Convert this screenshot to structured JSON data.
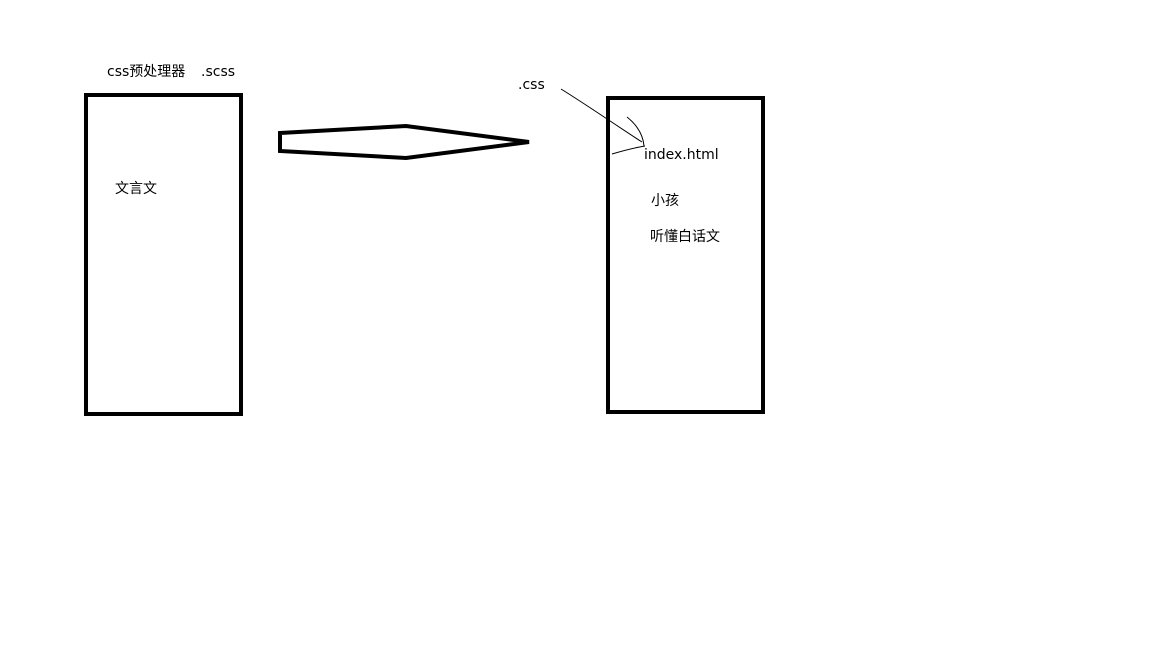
{
  "left": {
    "caption": "css预处理器",
    "extension": ".scss",
    "inner_text": "文言文"
  },
  "right": {
    "annotation": ".css",
    "file_name": "index.html",
    "line1": "小孩",
    "line2": "听懂白话文"
  },
  "colors": {
    "stroke": "#000000",
    "background": "#ffffff"
  }
}
